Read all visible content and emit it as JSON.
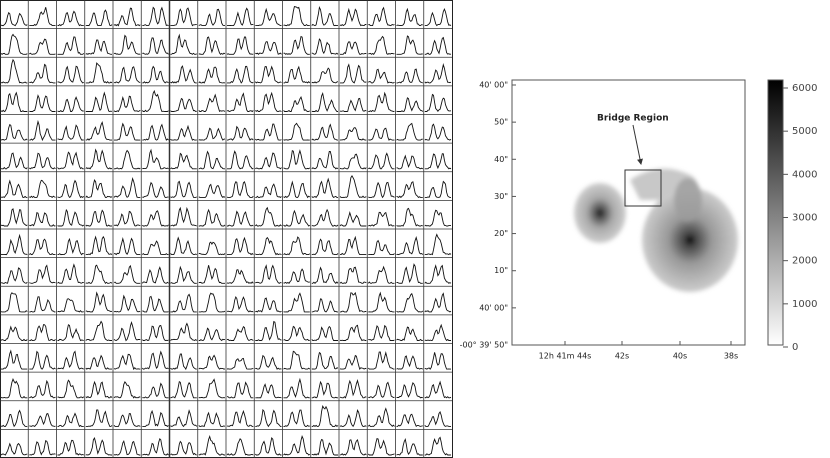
{
  "image_panel": {
    "annotation": "Bridge Region",
    "y_tick_labels": [
      "40' 00\"",
      "50\"",
      "40\"",
      "30\"",
      "20\"",
      "10\"",
      "40' 00\"",
      "-00° 39' 50\""
    ],
    "x_tick_labels": [
      "12h 41m 44s",
      "42s",
      "40s",
      "38s"
    ],
    "colorbar_labels": [
      "6000",
      "5000",
      "4000",
      "3000",
      "2000",
      "1000",
      "0"
    ]
  }
}
